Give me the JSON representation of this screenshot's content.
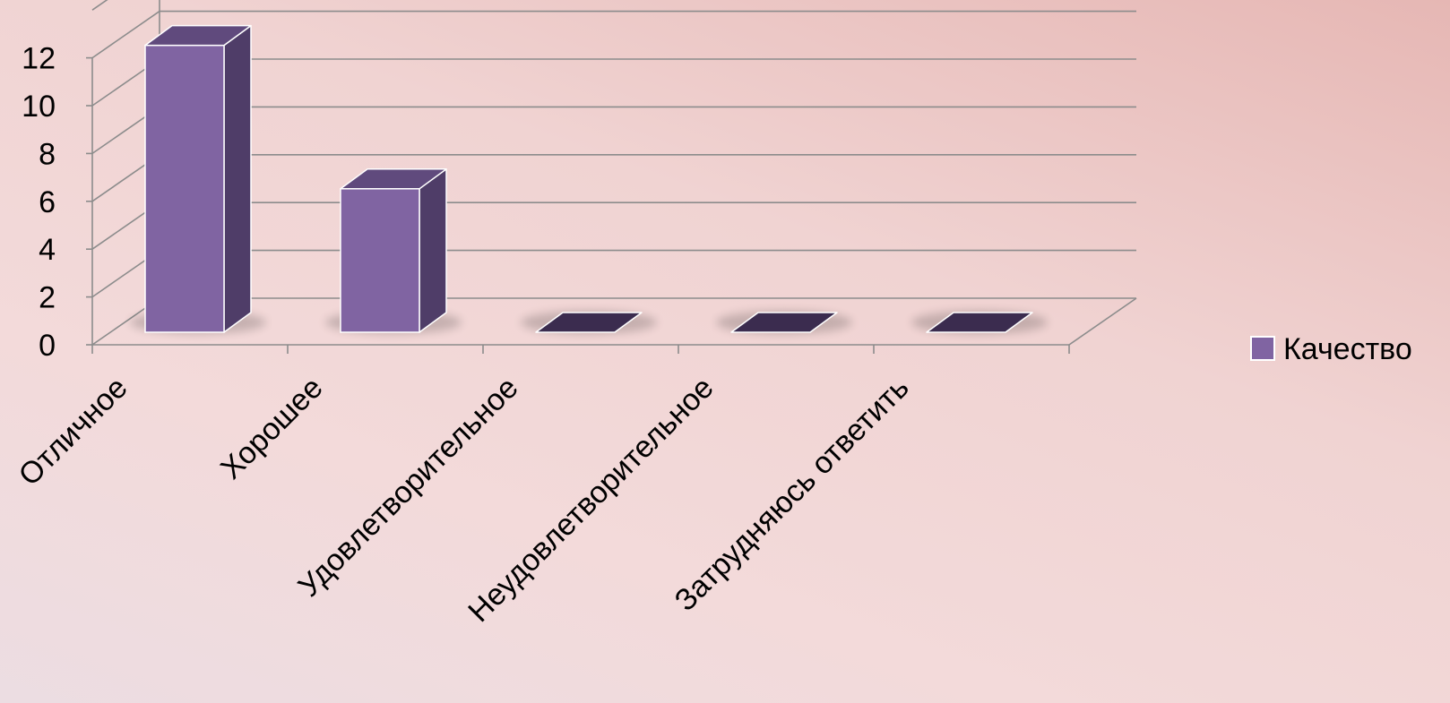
{
  "chart_data": {
    "type": "bar",
    "style": "3d-column",
    "categories": [
      "Отличное",
      "Хорошее",
      "Удовлетворительное",
      "Неудовлетворительное",
      "Затрудняюсь ответить"
    ],
    "series": [
      {
        "name": "Качество",
        "values": [
          12,
          6,
          0,
          0,
          0
        ],
        "color": "#8064a2"
      }
    ],
    "yticks": [
      "0",
      "2",
      "4",
      "6",
      "8",
      "10",
      "12"
    ],
    "ylim": [
      0,
      14
    ],
    "grid": true,
    "legend": "right",
    "colors": {
      "bar_front": "#8064a2",
      "bar_side": "#4f3d68",
      "bar_top": "#604a7d",
      "zero_top": "#3b2c4f",
      "gridline": "#8c8c8c"
    }
  }
}
